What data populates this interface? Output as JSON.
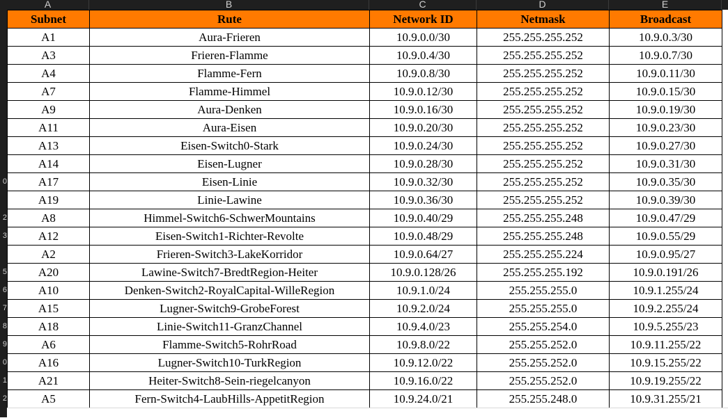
{
  "column_letters": [
    "A",
    "B",
    "C",
    "D",
    "E"
  ],
  "row_numbers": [
    "",
    "",
    "",
    "",
    "",
    "",
    "",
    "",
    "0",
    "",
    "2",
    "3",
    "",
    "5",
    "6",
    "7",
    "8",
    "9",
    "0",
    "1",
    "2"
  ],
  "colors": {
    "header_bg": "#ff7a00",
    "grid": "#000000",
    "chrome": "#1f1f1f"
  },
  "table": {
    "headers": [
      "Subnet",
      "Rute",
      "Network ID",
      "Netmask",
      "Broadcast"
    ],
    "rows": [
      [
        "A1",
        "Aura-Frieren",
        "10.9.0.0/30",
        "255.255.255.252",
        "10.9.0.3/30"
      ],
      [
        "A3",
        "Frieren-Flamme",
        "10.9.0.4/30",
        "255.255.255.252",
        "10.9.0.7/30"
      ],
      [
        "A4",
        "Flamme-Fern",
        "10.9.0.8/30",
        "255.255.255.252",
        "10.9.0.11/30"
      ],
      [
        "A7",
        "Flamme-Himmel",
        "10.9.0.12/30",
        "255.255.255.252",
        "10.9.0.15/30"
      ],
      [
        "A9",
        "Aura-Denken",
        "10.9.0.16/30",
        "255.255.255.252",
        "10.9.0.19/30"
      ],
      [
        "A11",
        "Aura-Eisen",
        "10.9.0.20/30",
        "255.255.255.252",
        "10.9.0.23/30"
      ],
      [
        "A13",
        "Eisen-Switch0-Stark",
        "10.9.0.24/30",
        "255.255.255.252",
        "10.9.0.27/30"
      ],
      [
        "A14",
        "Eisen-Lugner",
        "10.9.0.28/30",
        "255.255.255.252",
        "10.9.0.31/30"
      ],
      [
        "A17",
        "Eisen-Linie",
        "10.9.0.32/30",
        "255.255.255.252",
        "10.9.0.35/30"
      ],
      [
        "A19",
        "Linie-Lawine",
        "10.9.0.36/30",
        "255.255.255.252",
        "10.9.0.39/30"
      ],
      [
        "A8",
        "Himmel-Switch6-SchwerMountains",
        "10.9.0.40/29",
        "255.255.255.248",
        "10.9.0.47/29"
      ],
      [
        "A12",
        "Eisen-Switch1-Richter-Revolte",
        "10.9.0.48/29",
        "255.255.255.248",
        "10.9.0.55/29"
      ],
      [
        "A2",
        "Frieren-Switch3-LakeKorridor",
        "10.9.0.64/27",
        "255.255.255.224",
        "10.9.0.95/27"
      ],
      [
        "A20",
        "Lawine-Switch7-BredtRegion-Heiter",
        "10.9.0.128/26",
        "255.255.255.192",
        "10.9.0.191/26"
      ],
      [
        "A10",
        "Denken-Switch2-RoyalCapital-WilleRegion",
        "10.9.1.0/24",
        "255.255.255.0",
        "10.9.1.255/24"
      ],
      [
        "A15",
        "Lugner-Switch9-GrobeForest",
        "10.9.2.0/24",
        "255.255.255.0",
        "10.9.2.255/24"
      ],
      [
        "A18",
        "Linie-Switch11-GranzChannel",
        "10.9.4.0/23",
        "255.255.254.0",
        "10.9.5.255/23"
      ],
      [
        "A6",
        "Flamme-Switch5-RohrRoad",
        "10.9.8.0/22",
        "255.255.252.0",
        "10.9.11.255/22"
      ],
      [
        "A16",
        "Lugner-Switch10-TurkRegion",
        "10.9.12.0/22",
        "255.255.252.0",
        "10.9.15.255/22"
      ],
      [
        "A21",
        "Heiter-Switch8-Sein-riegelcanyon",
        "10.9.16.0/22",
        "255.255.252.0",
        "10.9.19.255/22"
      ],
      [
        "A5",
        "Fern-Switch4-LaubHills-AppetitRegion",
        "10.9.24.0/21",
        "255.255.248.0",
        "10.9.31.255/21"
      ]
    ]
  }
}
